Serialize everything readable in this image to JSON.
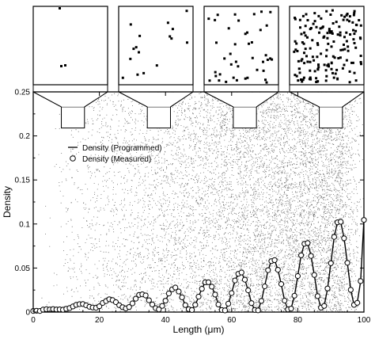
{
  "chart_data": {
    "type": "line",
    "title": "",
    "xlabel": "Length (μm)",
    "ylabel": "Density",
    "xlim": [
      0,
      100
    ],
    "ylim": [
      0,
      0.25
    ],
    "x_ticks": [
      0,
      20,
      40,
      60,
      80,
      100
    ],
    "x_tick_labels": [
      "0",
      "20",
      "40",
      "60",
      "80",
      "100"
    ],
    "y_ticks": [
      0,
      0.05,
      0.1,
      0.15,
      0.2,
      0.25
    ],
    "y_tick_labels": [
      "0",
      "0.05",
      "0.1",
      "0.15",
      "0.2",
      "0.25"
    ],
    "legend_position": "top-left",
    "grid": false,
    "inset_count": 4,
    "zoom_windows_x": [
      [
        8.5,
        15.5
      ],
      [
        34.5,
        41.5
      ],
      [
        60.5,
        67.5
      ],
      [
        86.5,
        93.5
      ]
    ],
    "zoom_windows_y": [
      0.209,
      0.233
    ],
    "series": [
      {
        "name": "Density (Programmed)",
        "style": "line",
        "color": "#000000",
        "x": [
          0,
          1,
          2,
          3,
          4,
          5,
          6,
          7,
          8,
          9,
          10,
          11,
          12,
          13,
          14,
          15,
          16,
          17,
          18,
          19,
          20,
          21,
          22,
          23,
          24,
          25,
          26,
          27,
          28,
          29,
          30,
          31,
          32,
          33,
          34,
          35,
          36,
          37,
          38,
          39,
          40,
          41,
          42,
          43,
          44,
          45,
          46,
          47,
          48,
          49,
          50,
          51,
          52,
          53,
          54,
          55,
          56,
          57,
          58,
          59,
          60,
          61,
          62,
          63,
          64,
          65,
          66,
          67,
          68,
          69,
          70,
          71,
          72,
          73,
          74,
          75,
          76,
          77,
          78,
          79,
          80,
          81,
          82,
          83,
          84,
          85,
          86,
          87,
          88,
          89,
          90,
          91,
          92,
          93,
          94,
          95,
          96,
          97,
          98,
          99,
          100
        ],
        "y": [
          0.001,
          0.0011,
          0.0015,
          0.0022,
          0.0029,
          0.0034,
          0.0036,
          0.0035,
          0.0031,
          0.003,
          0.0035,
          0.0048,
          0.0066,
          0.0083,
          0.0091,
          0.0087,
          0.0074,
          0.0058,
          0.0047,
          0.005,
          0.0069,
          0.0099,
          0.0128,
          0.0144,
          0.014,
          0.0116,
          0.0082,
          0.0053,
          0.0044,
          0.0061,
          0.0101,
          0.015,
          0.0191,
          0.0205,
          0.0185,
          0.0138,
          0.0082,
          0.0041,
          0.0033,
          0.0066,
          0.0131,
          0.0206,
          0.026,
          0.0273,
          0.0237,
          0.0164,
          0.0083,
          0.0029,
          0.0026,
          0.008,
          0.0172,
          0.0269,
          0.0334,
          0.0344,
          0.0292,
          0.0195,
          0.009,
          0.002,
          0.0016,
          0.0091,
          0.022,
          0.0354,
          0.0439,
          0.0445,
          0.0371,
          0.0242,
          0.0105,
          0.002,
          0.0023,
          0.0123,
          0.0296,
          0.0472,
          0.0582,
          0.0586,
          0.0484,
          0.0313,
          0.0134,
          0.0027,
          0.0043,
          0.0182,
          0.0413,
          0.064,
          0.0779,
          0.0779,
          0.0642,
          0.0417,
          0.0185,
          0.0046,
          0.0074,
          0.0263,
          0.0559,
          0.0848,
          0.1023,
          0.102,
          0.0842,
          0.0554,
          0.0257,
          0.0078,
          0.0109,
          0.0347,
          0.105
        ]
      },
      {
        "name": "Density (Measured)",
        "style": "open-circle",
        "color": "#000000",
        "x": [
          0,
          1,
          2,
          3,
          4,
          5,
          6,
          7,
          8,
          9,
          10,
          11,
          12,
          13,
          14,
          15,
          16,
          17,
          18,
          19,
          20,
          21,
          22,
          23,
          24,
          25,
          26,
          27,
          28,
          29,
          30,
          31,
          32,
          33,
          34,
          35,
          36,
          37,
          38,
          39,
          40,
          41,
          42,
          43,
          44,
          45,
          46,
          47,
          48,
          49,
          50,
          51,
          52,
          53,
          54,
          55,
          56,
          57,
          58,
          59,
          60,
          61,
          62,
          63,
          64,
          65,
          66,
          67,
          68,
          69,
          70,
          71,
          72,
          73,
          74,
          75,
          76,
          77,
          78,
          79,
          80,
          81,
          82,
          83,
          84,
          85,
          86,
          87,
          88,
          89,
          90,
          91,
          92,
          93,
          94,
          95,
          96,
          97,
          98,
          99,
          100
        ],
        "y": [
          0.0013,
          0.0015,
          0.0013,
          0.0028,
          0.0032,
          0.003,
          0.0034,
          0.003,
          0.0031,
          0.0027,
          0.0037,
          0.0046,
          0.0064,
          0.0082,
          0.009,
          0.0092,
          0.0076,
          0.006,
          0.0052,
          0.0049,
          0.0066,
          0.0103,
          0.0125,
          0.0146,
          0.0136,
          0.0112,
          0.0078,
          0.0056,
          0.0041,
          0.0058,
          0.0099,
          0.0152,
          0.0195,
          0.0201,
          0.0189,
          0.0134,
          0.0086,
          0.0045,
          0.0031,
          0.007,
          0.0129,
          0.0211,
          0.0258,
          0.0279,
          0.0234,
          0.0167,
          0.0079,
          0.0033,
          0.0024,
          0.0083,
          0.0175,
          0.0264,
          0.0338,
          0.0339,
          0.0289,
          0.0199,
          0.0086,
          0.0024,
          0.0019,
          0.0095,
          0.0216,
          0.0359,
          0.0434,
          0.045,
          0.0368,
          0.0247,
          0.0102,
          0.0024,
          0.002,
          0.0127,
          0.0292,
          0.0476,
          0.0578,
          0.059,
          0.048,
          0.0318,
          0.013,
          0.0031,
          0.004,
          0.0186,
          0.0409,
          0.0645,
          0.0775,
          0.0784,
          0.0638,
          0.0422,
          0.0181,
          0.005,
          0.007,
          0.0268,
          0.0555,
          0.0853,
          0.1019,
          0.1025,
          0.0838,
          0.0559,
          0.0253,
          0.0082,
          0.0105,
          0.0352,
          0.1046
        ]
      }
    ]
  }
}
